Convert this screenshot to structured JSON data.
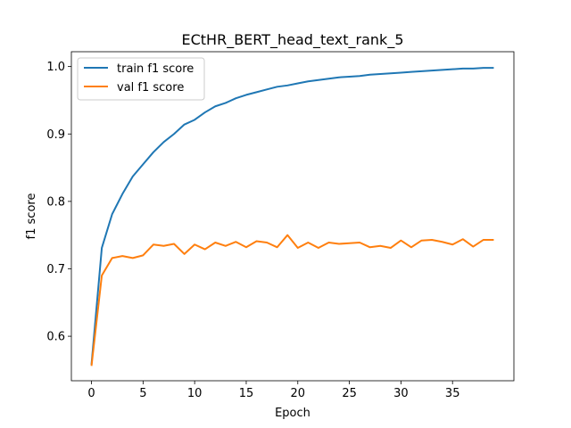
{
  "chart_data": {
    "type": "line",
    "title": "ECtHR_BERT_head_text_rank_5",
    "xlabel": "Epoch",
    "ylabel": "f1 score",
    "xlim": [
      -1.95,
      40.95
    ],
    "ylim": [
      0.534,
      1.022
    ],
    "xticks": [
      0,
      5,
      10,
      15,
      20,
      25,
      30,
      35
    ],
    "yticks": [
      0.6,
      0.7,
      0.8,
      0.9,
      1.0
    ],
    "ytick_labels": [
      "0.6",
      "0.7",
      "0.8",
      "0.9",
      "1.0"
    ],
    "grid": false,
    "legend_position": "upper-left",
    "x": [
      0,
      1,
      2,
      3,
      4,
      5,
      6,
      7,
      8,
      9,
      10,
      11,
      12,
      13,
      14,
      15,
      16,
      17,
      18,
      19,
      20,
      21,
      22,
      23,
      24,
      25,
      26,
      27,
      28,
      29,
      30,
      31,
      32,
      33,
      34,
      35,
      36,
      37,
      38,
      39
    ],
    "series": [
      {
        "name": "train f1 score",
        "color": "#1f77b4",
        "values": [
          0.558,
          0.731,
          0.781,
          0.811,
          0.837,
          0.855,
          0.873,
          0.888,
          0.9,
          0.914,
          0.921,
          0.932,
          0.941,
          0.946,
          0.953,
          0.958,
          0.962,
          0.966,
          0.97,
          0.972,
          0.975,
          0.978,
          0.98,
          0.982,
          0.984,
          0.985,
          0.986,
          0.988,
          0.989,
          0.99,
          0.991,
          0.992,
          0.993,
          0.994,
          0.995,
          0.996,
          0.997,
          0.997,
          0.998,
          0.998
        ]
      },
      {
        "name": "val f1 score",
        "color": "#ff7f0e",
        "values": [
          0.556,
          0.69,
          0.716,
          0.719,
          0.716,
          0.72,
          0.736,
          0.734,
          0.737,
          0.722,
          0.736,
          0.729,
          0.739,
          0.734,
          0.74,
          0.732,
          0.741,
          0.739,
          0.732,
          0.75,
          0.731,
          0.739,
          0.731,
          0.739,
          0.737,
          0.738,
          0.739,
          0.732,
          0.734,
          0.731,
          0.742,
          0.732,
          0.742,
          0.743,
          0.74,
          0.736,
          0.744,
          0.733,
          0.743,
          0.743
        ]
      }
    ]
  }
}
